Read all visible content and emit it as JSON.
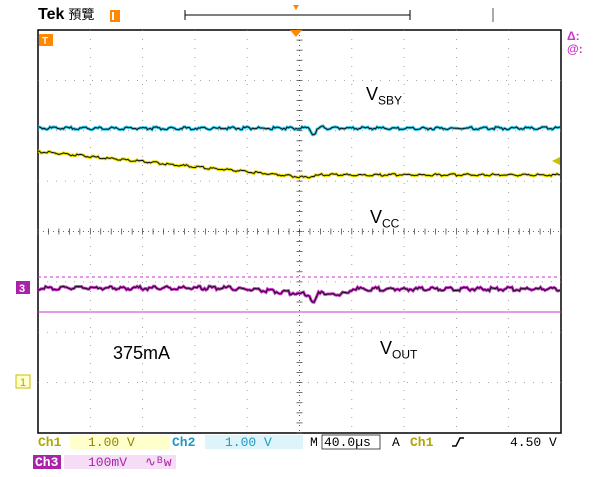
{
  "header": {
    "brand": "Tek",
    "mode": "預覽"
  },
  "markers": {
    "delta": "Δ:",
    "at": "@:",
    "ch3_marker": "3",
    "ch1_marker": "1"
  },
  "annotations": {
    "vsby_main": "V",
    "vsby_sub": "SBY",
    "vcc_main": "V",
    "vcc_sub": "CC",
    "vout_main": "V",
    "vout_sub": "OUT",
    "current": "375mA"
  },
  "footer": {
    "ch1_label": "Ch1",
    "ch1_scale": "1.00 V",
    "ch2_label": "Ch2",
    "ch2_scale": "1.00 V",
    "time_prefix": "M",
    "time_scale": "40.0µs",
    "acq_mode": "A",
    "trig_source": "Ch1",
    "trig_slope": "∱",
    "trig_level": "4.50 V",
    "ch3_label": "Ch3",
    "ch3_scale": "100mV",
    "ch3_bw": "∿ᴮw"
  },
  "colors": {
    "ch1": "#e8e000",
    "ch2": "#33ccee",
    "ch3": "#cc33cc",
    "trigger": "#ff8800",
    "background": "#ffffff",
    "grid": "#000000"
  }
}
